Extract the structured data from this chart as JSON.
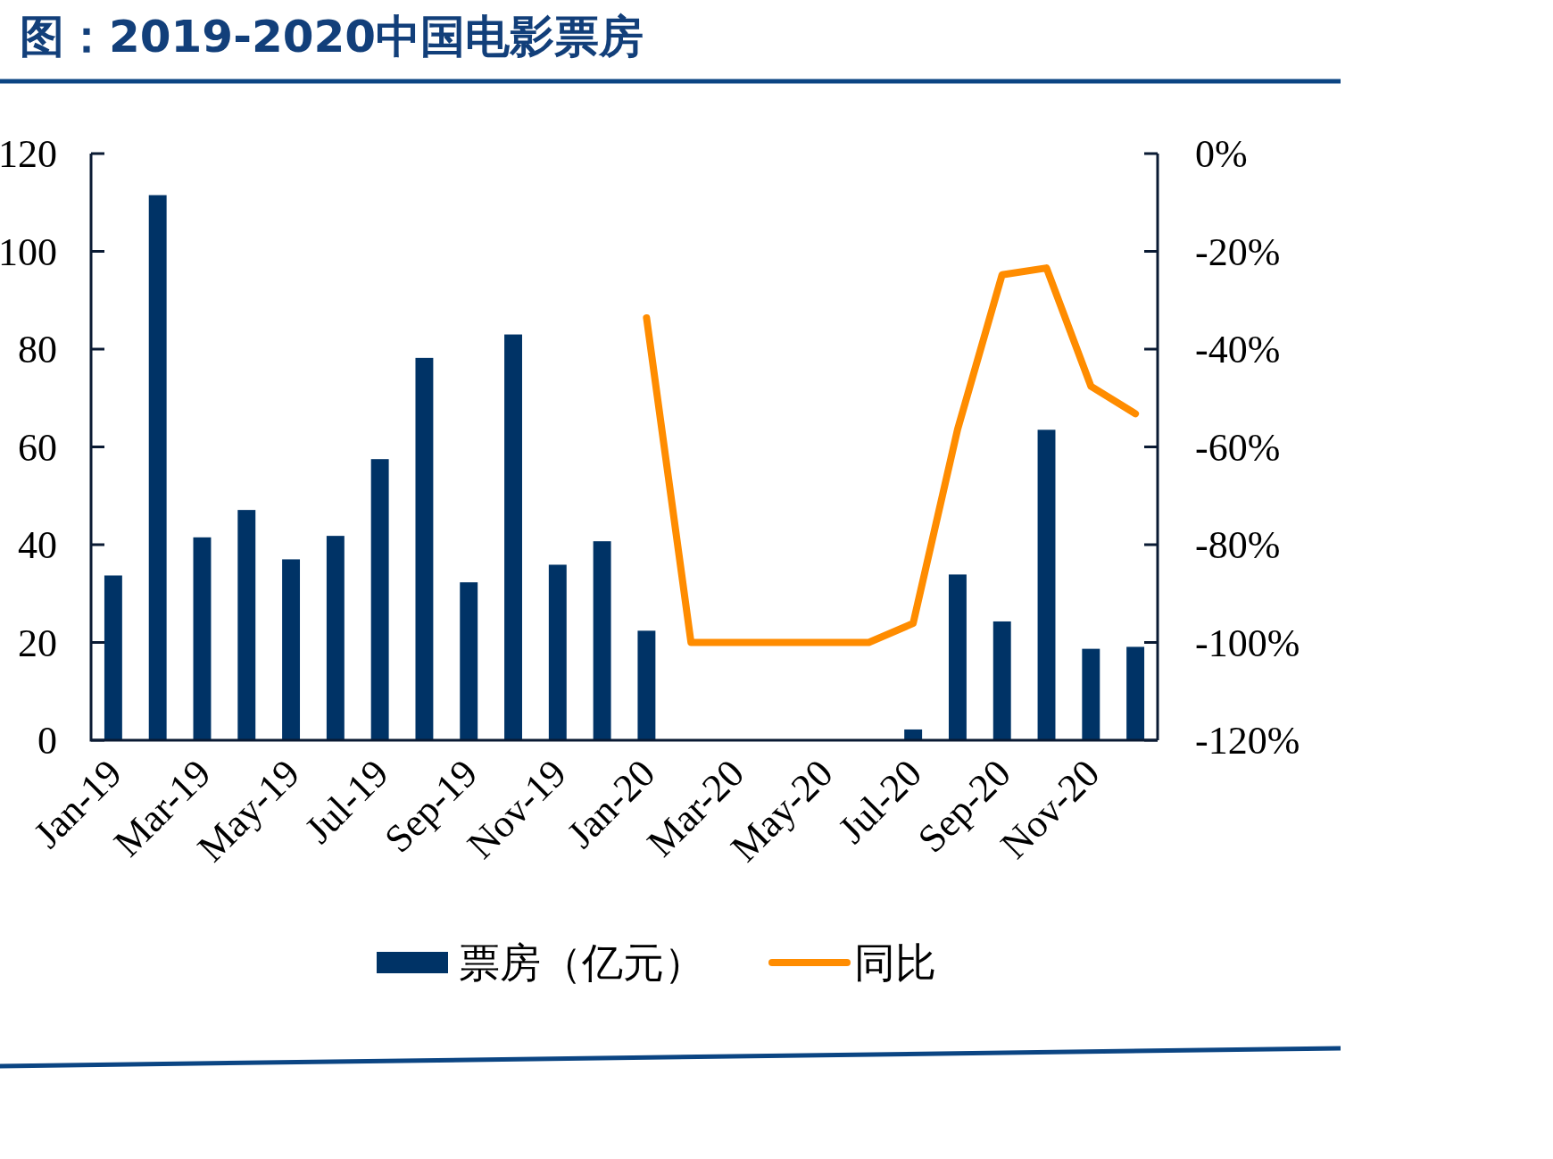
{
  "chart_data": {
    "type": "bar",
    "title": "图：2019-2020中国电影票房",
    "categories": [
      "Jan-19",
      null,
      "Mar-19",
      null,
      "May-19",
      null,
      "Jul-19",
      null,
      "Sep-19",
      null,
      "Nov-19",
      null,
      "Jan-20",
      null,
      "Mar-20",
      null,
      "May-20",
      null,
      "Jul-20",
      null,
      "Sep-20",
      null,
      "Nov-20",
      null
    ],
    "series": [
      {
        "name": "票房（亿元）",
        "color": "#003366",
        "values": [
          33.7,
          111.5,
          41.5,
          47.1,
          37.0,
          41.8,
          57.5,
          78.2,
          32.3,
          83.0,
          35.9,
          40.7,
          22.4,
          0,
          0,
          0,
          0,
          0,
          2.2,
          33.9,
          24.3,
          63.5,
          18.7,
          19.1
        ]
      },
      {
        "name": "同比",
        "type": "line",
        "axis": "y2",
        "color": "#ff8c00",
        "values": [
          null,
          null,
          null,
          null,
          null,
          null,
          null,
          null,
          null,
          null,
          null,
          null,
          -33.6,
          -100,
          -100,
          -100,
          -100,
          -100,
          -96.1,
          -56.4,
          -24.8,
          -23.4,
          -47.6,
          -53.2
        ]
      }
    ],
    "ylim": [
      0,
      120
    ],
    "yticks": [
      0,
      20,
      40,
      60,
      80,
      100,
      120
    ],
    "y2lim": [
      -120,
      0
    ],
    "y2ticks": [
      {
        "value": -120,
        "label": "-120%"
      },
      {
        "value": -100,
        "label": "-100%"
      },
      {
        "value": -80,
        "label": "-80%"
      },
      {
        "value": -60,
        "label": "-60%"
      },
      {
        "value": -40,
        "label": "-40%"
      },
      {
        "value": -20,
        "label": "-20%"
      },
      {
        "value": 0,
        "label": "0%"
      }
    ],
    "legend": "bottom"
  }
}
